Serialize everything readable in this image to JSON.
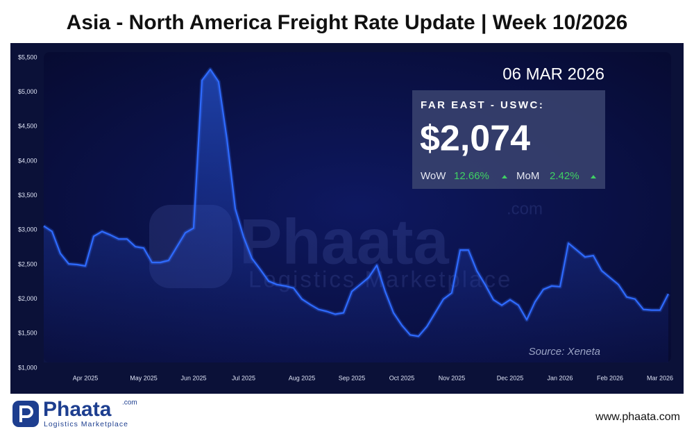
{
  "header": {
    "title": "Asia - North America Freight Rate Update | Week 10/2026"
  },
  "chart_data": {
    "type": "line",
    "categories": [
      null,
      null,
      null,
      null,
      null,
      "Apr 2025",
      null,
      null,
      null,
      null,
      null,
      null,
      "May 2025",
      null,
      null,
      null,
      null,
      null,
      "Jun 2025",
      null,
      null,
      null,
      null,
      null,
      "Jul 2025",
      null,
      null,
      null,
      null,
      null,
      null,
      "Aug 2025",
      null,
      null,
      null,
      null,
      null,
      "Sep 2025",
      null,
      null,
      null,
      null,
      null,
      "Oct 2025",
      null,
      null,
      null,
      null,
      null,
      "Nov 2025",
      null,
      null,
      null,
      null,
      null,
      null,
      "Dec 2025",
      null,
      null,
      null,
      null,
      null,
      "Jan 2026",
      null,
      null,
      null,
      null,
      null,
      "Feb 2026",
      null,
      null,
      null,
      null,
      null,
      "Mar 2026",
      null
    ],
    "series": [
      {
        "name": "FAR EAST - USWC",
        "color": "#2f6bff",
        "values": [
          3060,
          2980,
          2660,
          2510,
          2500,
          2480,
          2910,
          2980,
          2930,
          2870,
          2870,
          2760,
          2740,
          2530,
          2530,
          2560,
          2760,
          2960,
          3030,
          5170,
          5330,
          5150,
          4320,
          3310,
          2900,
          2590,
          2430,
          2260,
          2210,
          2190,
          2160,
          2000,
          1920,
          1850,
          1820,
          1780,
          1800,
          2110,
          2210,
          2310,
          2490,
          2110,
          1800,
          1620,
          1480,
          1460,
          1600,
          1800,
          2000,
          2090,
          2710,
          2710,
          2410,
          2210,
          1990,
          1910,
          1990,
          1910,
          1700,
          1960,
          2140,
          2190,
          2180,
          2810,
          2710,
          2610,
          2630,
          2410,
          2310,
          2210,
          2030,
          2000,
          1850,
          1840,
          1840,
          2074
        ]
      }
    ],
    "ylim": [
      1000,
      5500
    ],
    "yticks": [
      {
        "value": 1000,
        "label": "$1,000"
      },
      {
        "value": 1500,
        "label": "$1,500"
      },
      {
        "value": 2000,
        "label": "$2,000"
      },
      {
        "value": 2500,
        "label": "$2,500"
      },
      {
        "value": 3000,
        "label": "$3,000"
      },
      {
        "value": 3500,
        "label": "$3,500"
      },
      {
        "value": 4000,
        "label": "$4,000"
      },
      {
        "value": 4500,
        "label": "$4,500"
      },
      {
        "value": 5000,
        "label": "$5,000"
      },
      {
        "value": 5500,
        "label": "$5,500"
      }
    ],
    "grid": false,
    "source": "Source: Xeneta"
  },
  "callout": {
    "date": "06 MAR 2026",
    "route": "FAR EAST - USWC:",
    "rate": "$2,074",
    "wow_label": "WoW",
    "wow": "12.66%",
    "mom_label": "MoM",
    "mom": "2.42%"
  },
  "watermark": {
    "name": "Phaata",
    "domain": ".com",
    "tagline": "Logistics Marketplace"
  },
  "footer": {
    "logo": "Phaata",
    "domain": ".com",
    "tagline": "Logistics Marketplace",
    "website": "www.phaata.com"
  }
}
